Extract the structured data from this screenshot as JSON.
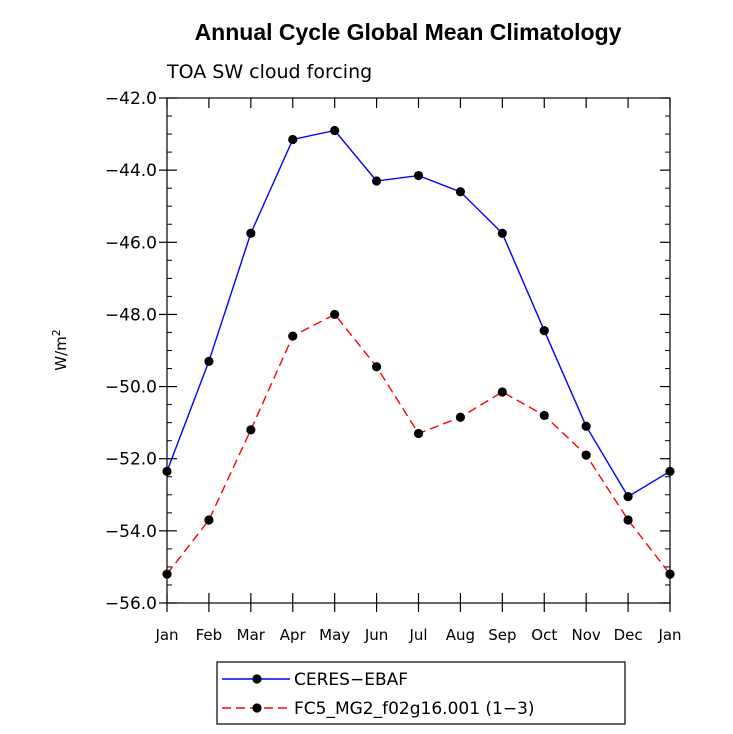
{
  "chart_data": {
    "type": "line",
    "title": "Annual Cycle Global Mean Climatology",
    "subtitle": "TOA SW cloud forcing",
    "ylabel": "W/m",
    "ylabel_superscript": "2",
    "xlabel": "",
    "ylim": [
      -56.0,
      -42.0
    ],
    "y_ticks": [
      -56.0,
      -54.0,
      -52.0,
      -50.0,
      -48.0,
      -46.0,
      -44.0,
      -42.0
    ],
    "y_tick_labels": [
      "−56.0",
      "−54.0",
      "−52.0",
      "−50.0",
      "−48.0",
      "−46.0",
      "−44.0",
      "−42.0"
    ],
    "categories": [
      "Jan",
      "Feb",
      "Mar",
      "Apr",
      "May",
      "Jun",
      "Jul",
      "Aug",
      "Sep",
      "Oct",
      "Nov",
      "Dec",
      "Jan"
    ],
    "series": [
      {
        "name": "CERES−EBAF",
        "color": "#0000ff",
        "dash": "solid",
        "marker": "filled-circle",
        "values": [
          -52.35,
          -49.3,
          -45.75,
          -43.15,
          -42.9,
          -44.3,
          -44.15,
          -44.6,
          -45.75,
          -48.45,
          -51.1,
          -53.05,
          -52.35
        ]
      },
      {
        "name": "FC5_MG2_f02g16.001 (1−3)",
        "color": "#ff0000",
        "dash": "dashed",
        "marker": "filled-circle",
        "values": [
          -55.2,
          -53.7,
          -51.2,
          -48.6,
          -48.0,
          -49.45,
          -51.3,
          -50.85,
          -50.15,
          -50.8,
          -51.9,
          -53.7,
          -55.2
        ]
      }
    ],
    "grid": false,
    "legend_position": "bottom-center"
  }
}
